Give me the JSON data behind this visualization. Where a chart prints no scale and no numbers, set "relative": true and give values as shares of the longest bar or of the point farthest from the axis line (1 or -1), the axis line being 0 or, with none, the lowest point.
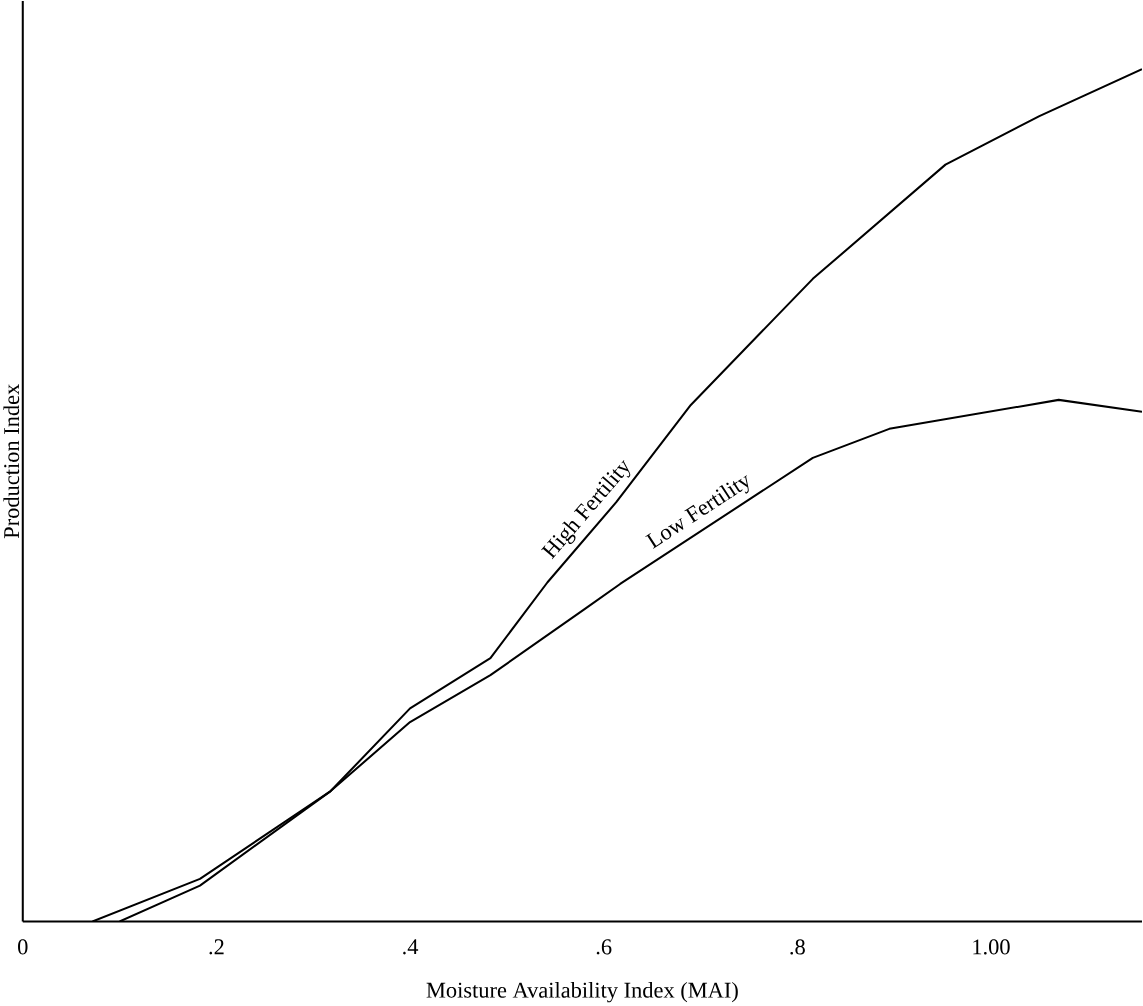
{
  "chart_data": {
    "type": "line",
    "relative": true,
    "xlabel": "Moisture Availability Index (MAI)",
    "ylabel": "Production Index",
    "xlim": [
      0,
      1.156
    ],
    "xticks": [
      0,
      {
        "value": 0.2,
        "label": ".2"
      },
      {
        "value": 0.4,
        "label": ".4"
      },
      {
        "value": 0.6,
        "label": ".6"
      },
      {
        "value": 0.8,
        "label": ".8"
      },
      {
        "value": 1.0,
        "label": "1.00"
      }
    ],
    "grid": false,
    "legend": false,
    "marker": "none",
    "line_style": "solid",
    "series": [
      {
        "name": "High Fertility",
        "color": "#000000",
        "x": [
          0.1,
          0.183,
          0.318,
          0.4,
          0.483,
          0.542,
          0.613,
          0.69,
          0.816,
          0.953,
          1.05,
          1.156
        ],
        "values": [
          0,
          0.042,
          0.153,
          0.25,
          0.309,
          0.398,
          0.492,
          0.606,
          0.754,
          0.888,
          0.945,
          1.0
        ]
      },
      {
        "name": "Low Fertility",
        "color": "#000000",
        "x": [
          0.072,
          0.183,
          0.318,
          0.4,
          0.483,
          0.581,
          0.617,
          0.816,
          0.895,
          1.07,
          1.156
        ],
        "values": [
          0,
          0.05,
          0.153,
          0.234,
          0.289,
          0.367,
          0.396,
          0.544,
          0.578,
          0.612,
          0.598
        ]
      }
    ]
  }
}
